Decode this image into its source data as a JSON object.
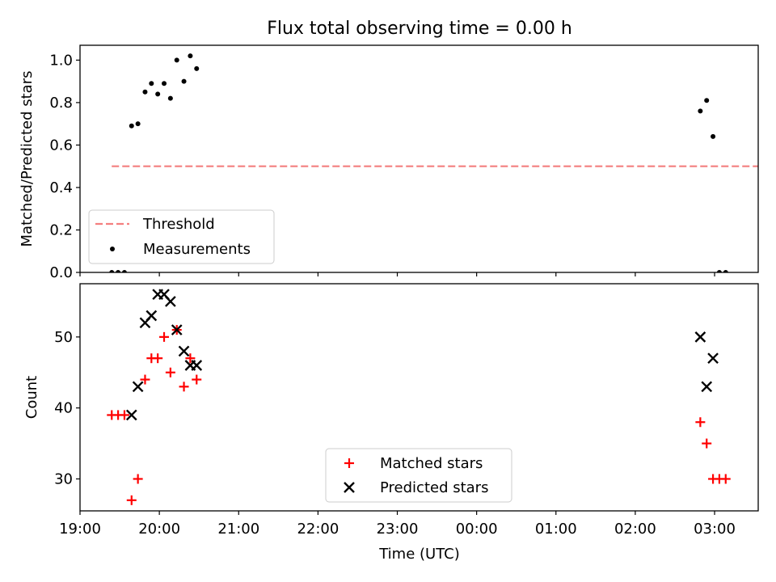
{
  "title": "Flux total observing time = 0.00 h",
  "chart_data": [
    {
      "type": "scatter",
      "panel": "top",
      "ylabel": "Matched/Predicted stars",
      "xlabel": "",
      "x_axis": "time (hours, 19 = 19:00, 24 = 00:00)",
      "xlim": [
        19.0,
        27.55
      ],
      "ylim": [
        0.0,
        1.07
      ],
      "yticks": [
        0.0,
        0.2,
        0.4,
        0.6,
        0.8,
        1.0
      ],
      "ytick_labels": [
        "0.0",
        "0.2",
        "0.4",
        "0.6",
        "0.8",
        "1.0"
      ],
      "legend_position": "lower-left",
      "threshold": {
        "name": "Threshold",
        "value": 0.5,
        "x": [
          19.4,
          27.98
        ],
        "color": "#f47f7f",
        "style": "dashed"
      },
      "series": [
        {
          "name": "Measurements",
          "color": "#000000",
          "marker": "dot",
          "points": [
            [
              19.4,
              0.0
            ],
            [
              19.48,
              0.0
            ],
            [
              19.56,
              0.0
            ],
            [
              19.65,
              0.69
            ],
            [
              19.73,
              0.7
            ],
            [
              19.82,
              0.85
            ],
            [
              19.9,
              0.89
            ],
            [
              19.98,
              0.84
            ],
            [
              20.06,
              0.89
            ],
            [
              20.14,
              0.82
            ],
            [
              20.22,
              1.0
            ],
            [
              20.31,
              0.9
            ],
            [
              20.39,
              1.02
            ],
            [
              20.47,
              0.96
            ],
            [
              26.82,
              0.76
            ],
            [
              26.9,
              0.81
            ],
            [
              26.98,
              0.64
            ],
            [
              27.06,
              0.0
            ],
            [
              27.14,
              0.0
            ]
          ]
        }
      ]
    },
    {
      "type": "scatter",
      "panel": "bottom",
      "ylabel": "Count",
      "xlabel": "Time (UTC)",
      "xlim": [
        19.0,
        27.55
      ],
      "ylim": [
        25.5,
        57.5
      ],
      "yticks": [
        30,
        40,
        50
      ],
      "ytick_labels": [
        "30",
        "40",
        "50"
      ],
      "xticks": [
        19,
        20,
        21,
        22,
        23,
        24,
        25,
        26,
        27
      ],
      "xtick_labels": [
        "19:00",
        "20:00",
        "21:00",
        "22:00",
        "23:00",
        "00:00",
        "01:00",
        "02:00",
        "03:00"
      ],
      "legend_position": "lower-center",
      "series": [
        {
          "name": "Matched stars",
          "color": "#ff0000",
          "marker": "plus",
          "points": [
            [
              19.4,
              39
            ],
            [
              19.48,
              39
            ],
            [
              19.56,
              39
            ],
            [
              19.65,
              27
            ],
            [
              19.73,
              30
            ],
            [
              19.82,
              44
            ],
            [
              19.9,
              47
            ],
            [
              19.98,
              47
            ],
            [
              20.06,
              50
            ],
            [
              20.14,
              45
            ],
            [
              20.22,
              51
            ],
            [
              20.31,
              43
            ],
            [
              20.39,
              47
            ],
            [
              20.47,
              44
            ],
            [
              26.82,
              38
            ],
            [
              26.9,
              35
            ],
            [
              26.98,
              30
            ],
            [
              27.06,
              30
            ],
            [
              27.14,
              30
            ]
          ]
        },
        {
          "name": "Predicted stars",
          "color": "#000000",
          "marker": "x",
          "points": [
            [
              19.65,
              39
            ],
            [
              19.73,
              43
            ],
            [
              19.82,
              52
            ],
            [
              19.9,
              53
            ],
            [
              19.98,
              56
            ],
            [
              20.06,
              56
            ],
            [
              20.14,
              55
            ],
            [
              20.22,
              51
            ],
            [
              20.31,
              48
            ],
            [
              20.39,
              46
            ],
            [
              20.47,
              46
            ],
            [
              26.82,
              50
            ],
            [
              26.9,
              43
            ],
            [
              26.98,
              47
            ]
          ]
        }
      ]
    }
  ]
}
